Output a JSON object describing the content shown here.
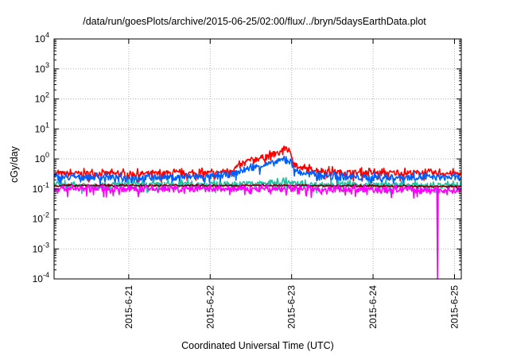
{
  "chart_data": {
    "type": "line",
    "title": "/data/run/goesPlots/archive/2015-06-25/02:00/flux/../bryn/5daysEarthData.plot",
    "xlabel": "Coordinated Universal Time (UTC)",
    "ylabel": "cGy/day",
    "y_scale": "log",
    "ylim": [
      0.0001,
      10000
    ],
    "y_ticks": [
      {
        "value": 0.0001,
        "base": "10",
        "exp": "-4"
      },
      {
        "value": 0.001,
        "base": "10",
        "exp": "-3"
      },
      {
        "value": 0.01,
        "base": "10",
        "exp": "-2"
      },
      {
        "value": 0.1,
        "base": "10",
        "exp": "-1"
      },
      {
        "value": 1,
        "base": "10",
        "exp": "0"
      },
      {
        "value": 10,
        "base": "10",
        "exp": "1"
      },
      {
        "value": 100,
        "base": "10",
        "exp": "2"
      },
      {
        "value": 1000,
        "base": "10",
        "exp": "3"
      },
      {
        "value": 10000,
        "base": "10",
        "exp": "4"
      }
    ],
    "xlim": [
      "2015-06-20 02:00",
      "2015-06-25 02:00"
    ],
    "x_ticks": [
      "2015-6-21",
      "2015-6-22",
      "2015-6-23",
      "2015-6-24",
      "2015-6-25"
    ],
    "grid": true,
    "legend": "none",
    "series": [
      {
        "color": "#ff0000",
        "x_days": [
          0,
          0.5,
          1,
          1.5,
          2,
          2.2,
          2.4,
          2.6,
          2.75,
          2.85,
          3,
          3.5,
          4,
          4.5,
          5
        ],
        "values": [
          0.32,
          0.33,
          0.32,
          0.33,
          0.34,
          0.45,
          0.9,
          1.2,
          1.5,
          2.5,
          0.5,
          0.36,
          0.34,
          0.35,
          0.32
        ]
      },
      {
        "color": "#0060ff",
        "x_days": [
          0,
          0.5,
          1,
          1.5,
          2,
          2.2,
          2.4,
          2.6,
          2.75,
          2.85,
          3,
          3.5,
          4,
          4.5,
          5
        ],
        "values": [
          0.24,
          0.25,
          0.24,
          0.25,
          0.26,
          0.32,
          0.5,
          0.65,
          0.8,
          1.1,
          0.35,
          0.25,
          0.24,
          0.25,
          0.24
        ]
      },
      {
        "color": "#20c0a0",
        "x_days": [
          0,
          0.5,
          1,
          1.5,
          2,
          2.5,
          2.85,
          3,
          3.5,
          4,
          4.5,
          5
        ],
        "values": [
          0.135,
          0.135,
          0.135,
          0.14,
          0.14,
          0.15,
          0.17,
          0.14,
          0.135,
          0.135,
          0.13,
          0.13
        ]
      },
      {
        "color": "#800000",
        "x_days": [
          0,
          1,
          2,
          3,
          4,
          5
        ],
        "values": [
          0.13,
          0.13,
          0.13,
          0.13,
          0.125,
          0.12
        ]
      },
      {
        "color": "#ff00ff",
        "x_days": [
          0,
          1,
          2,
          3,
          4,
          4.7,
          5
        ],
        "values": [
          0.105,
          0.1,
          0.1,
          0.1,
          0.095,
          0.092,
          0.09
        ],
        "dropout": {
          "x_day": 4.71,
          "value": 0.0001
        }
      }
    ]
  }
}
